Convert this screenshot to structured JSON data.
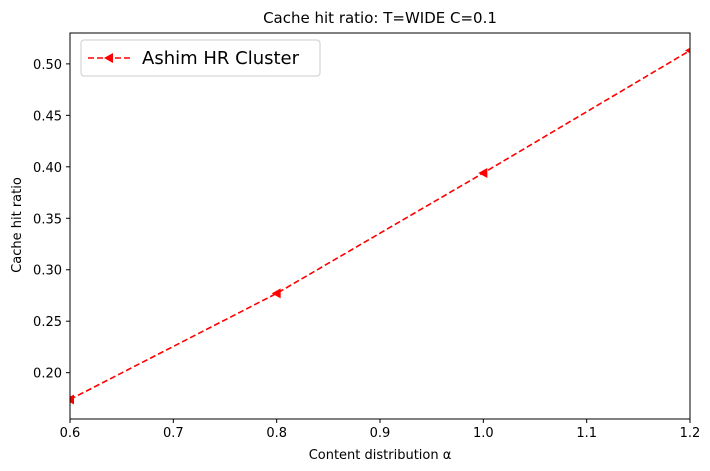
{
  "chart_data": {
    "type": "line",
    "title": "Cache hit ratio: T=WIDE C=0.1",
    "xlabel": "Content distribution α",
    "ylabel": "Cache hit ratio",
    "xlim": [
      0.6,
      1.2
    ],
    "ylim": [
      0.155,
      0.53
    ],
    "xticks": [
      "0.6",
      "0.7",
      "0.8",
      "0.9",
      "1.0",
      "1.1",
      "1.2"
    ],
    "yticks": [
      "0.20",
      "0.25",
      "0.30",
      "0.35",
      "0.40",
      "0.45",
      "0.50"
    ],
    "grid": false,
    "legend_position": "top-left",
    "series": [
      {
        "name": "Ashim HR Cluster",
        "color": "#ff0000",
        "line_style": "dashed",
        "marker": "triangle-left",
        "x": [
          0.6,
          0.8,
          1.0,
          1.2
        ],
        "y": [
          0.174,
          0.277,
          0.394,
          0.513
        ]
      }
    ]
  }
}
